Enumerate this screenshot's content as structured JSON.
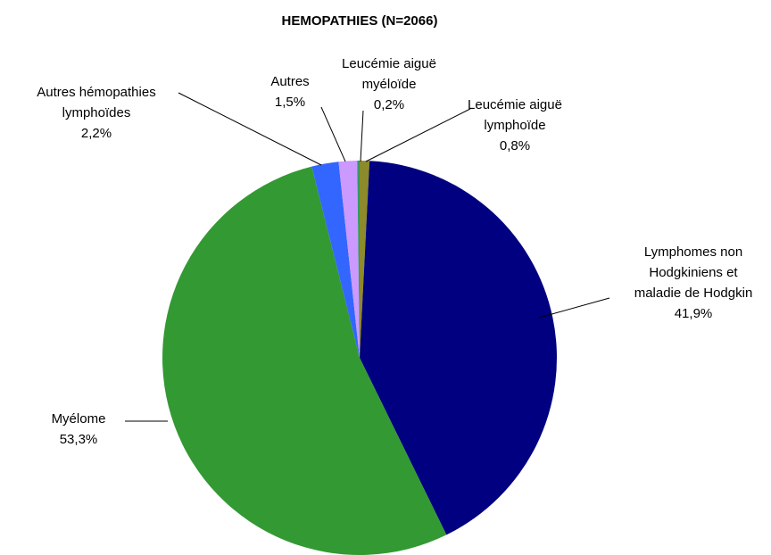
{
  "chart_data": {
    "type": "pie",
    "title": "HEMOPATHIES  (N=2066)",
    "categories": [
      [
        "Leucémie aiguë",
        "lymphoïde"
      ],
      [
        "Lymphomes non",
        "Hodgkiniens et",
        "maladie de Hodgkin"
      ],
      [
        "Myélome"
      ],
      [
        "Autres hémopathies",
        "lymphoïdes"
      ],
      [
        "Autres"
      ],
      [
        "Leucémie aiguë",
        "myéloïde"
      ]
    ],
    "values": [
      0.8,
      41.9,
      53.3,
      2.2,
      1.5,
      0.2
    ],
    "value_labels": [
      "0,8%",
      "41,9%",
      "53,3%",
      "2,2%",
      "1,5%",
      "0,2%"
    ],
    "colors": [
      "#8c8a2a",
      "#000080",
      "#339933",
      "#3366ff",
      "#cc99ff",
      "#339966"
    ]
  }
}
